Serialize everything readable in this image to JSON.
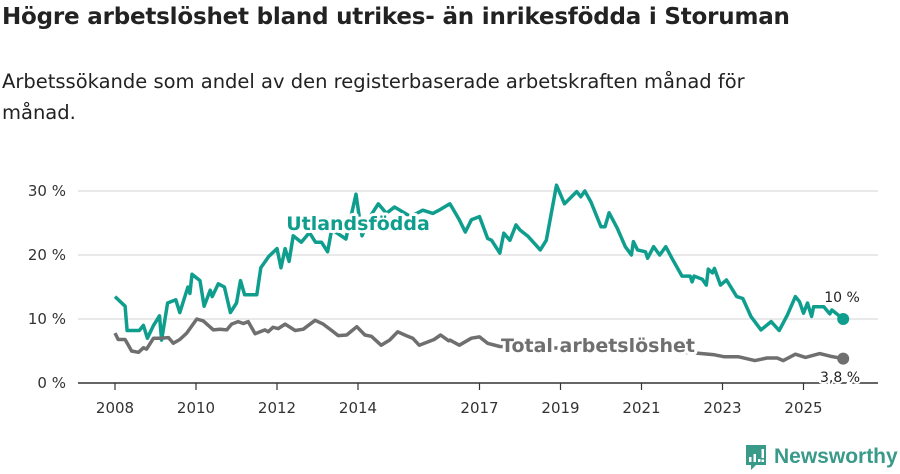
{
  "title": "Högre arbetslöshet bland utrikes- än inrikesfödda i Storuman",
  "subtitle": "Arbetssökande som andel av den registerbaserade arbetskraften månad för månad.",
  "brand": "Newsworthy",
  "colors": {
    "foreign": "#0f9e8e",
    "total": "#6f6f6f",
    "grid": "#e2e2e2",
    "brand": "#3a9a8a"
  },
  "chart_data": {
    "type": "line",
    "title": "Högre arbetslöshet bland utrikes- än inrikesfödda i Storuman",
    "xlabel": "",
    "ylabel": "",
    "ylim": [
      0,
      30
    ],
    "xlim": [
      2007.1,
      2026.8
    ],
    "yticks": [
      {
        "v": 0,
        "label": "0 %"
      },
      {
        "v": 10,
        "label": "10 %"
      },
      {
        "v": 20,
        "label": "20 %"
      },
      {
        "v": 30,
        "label": "30 %"
      }
    ],
    "xticks": [
      {
        "v": 2008,
        "label": "2008"
      },
      {
        "v": 2010,
        "label": "2010"
      },
      {
        "v": 2012,
        "label": "2012"
      },
      {
        "v": 2014,
        "label": "2014"
      },
      {
        "v": 2017,
        "label": "2017"
      },
      {
        "v": 2019,
        "label": "2019"
      },
      {
        "v": 2021,
        "label": "2021"
      },
      {
        "v": 2023,
        "label": "2023"
      },
      {
        "v": 2025,
        "label": "2025"
      }
    ],
    "grid": true,
    "series": [
      {
        "name": "Utlandsfödda",
        "end_label": "10 %",
        "x": [
          2008.0,
          2008.25,
          2008.3,
          2008.6,
          2008.7,
          2008.8,
          2008.95,
          2009.1,
          2009.15,
          2009.3,
          2009.5,
          2009.6,
          2009.8,
          2009.85,
          2009.9,
          2010.1,
          2010.2,
          2010.35,
          2010.4,
          2010.55,
          2010.7,
          2010.85,
          2011.0,
          2011.1,
          2011.2,
          2011.5,
          2011.6,
          2011.8,
          2012.0,
          2012.1,
          2012.2,
          2012.3,
          2012.4,
          2012.6,
          2012.8,
          2012.95,
          2013.1,
          2013.25,
          2013.35,
          2013.7,
          2013.95,
          2014.1,
          2014.3,
          2014.5,
          2014.7,
          2014.9,
          2015.3,
          2015.6,
          2015.85,
          2016.0,
          2016.27,
          2016.5,
          2016.65,
          2016.8,
          2017.0,
          2017.2,
          2017.3,
          2017.5,
          2017.6,
          2017.75,
          2017.9,
          2018.0,
          2018.2,
          2018.5,
          2018.65,
          2018.9,
          2019.1,
          2019.4,
          2019.5,
          2019.6,
          2019.75,
          2020.0,
          2020.1,
          2020.2,
          2020.4,
          2020.6,
          2020.75,
          2020.8,
          2020.9,
          2021.1,
          2021.15,
          2021.3,
          2021.45,
          2021.6,
          2021.75,
          2022.0,
          2022.2,
          2022.25,
          2022.3,
          2022.5,
          2022.6,
          2022.65,
          2022.75,
          2022.8,
          2022.95,
          2023.1,
          2023.35,
          2023.5,
          2023.7,
          2023.95,
          2024.2,
          2024.4,
          2024.6,
          2024.8,
          2024.9,
          2025.0,
          2025.1,
          2025.2,
          2025.25,
          2025.5,
          2025.65,
          2025.7,
          2025.98
        ],
        "y": [
          13.5,
          12,
          8.2,
          8.2,
          9,
          7,
          9,
          10.5,
          6.7,
          12.5,
          13,
          11,
          15,
          14,
          17,
          16,
          12,
          14.5,
          13.5,
          15.5,
          15,
          11,
          12.5,
          16,
          13.8,
          13.8,
          18,
          19.8,
          21,
          18,
          21,
          19,
          23,
          22,
          23.5,
          22,
          22,
          20.5,
          24,
          22.5,
          29.5,
          23,
          26,
          28,
          26.5,
          27.5,
          26,
          27,
          26.5,
          27,
          28,
          25.5,
          23.6,
          25.5,
          26,
          22.6,
          22.3,
          20.3,
          23.4,
          22.3,
          24.7,
          23.9,
          22.9,
          20.8,
          22.3,
          30.9,
          28,
          29.9,
          29.1,
          30,
          28.3,
          24.4,
          24.4,
          26.6,
          24.2,
          21.3,
          20,
          22.1,
          20.8,
          20.5,
          19.5,
          21.3,
          20,
          21.3,
          19.5,
          16.7,
          16.7,
          15.8,
          16.7,
          16.2,
          15.3,
          17.8,
          17.2,
          17.9,
          15.3,
          16.1,
          13.5,
          13.2,
          10.4,
          8.3,
          9.6,
          8.2,
          10.6,
          13.5,
          12.7,
          10.9,
          12.5,
          10.4,
          11.9,
          11.9,
          10.8,
          11.4,
          10
        ]
      },
      {
        "name": "Total arbetslöshet",
        "end_label": "3,8 %",
        "x": [
          2008.0,
          2008.08,
          2008.25,
          2008.41,
          2008.58,
          2008.7,
          2008.78,
          2008.95,
          2009.11,
          2009.32,
          2009.44,
          2009.6,
          2009.77,
          2010.02,
          2010.18,
          2010.43,
          2010.59,
          2010.76,
          2010.88,
          2011.04,
          2011.17,
          2011.29,
          2011.46,
          2011.7,
          2011.78,
          2011.9,
          2012.03,
          2012.2,
          2012.45,
          2012.65,
          2012.94,
          2013.14,
          2013.35,
          2013.51,
          2013.72,
          2013.97,
          2014.17,
          2014.33,
          2014.57,
          2014.78,
          2014.98,
          2015.19,
          2015.35,
          2015.51,
          2015.88,
          2016.04,
          2016.24,
          2016.27,
          2016.5,
          2016.8,
          2017.0,
          2017.2,
          2017.5,
          2018.5,
          2019.5,
          2020.5,
          2021.5,
          2022.3,
          2022.8,
          2023.05,
          2023.4,
          2023.8,
          2024.1,
          2024.35,
          2024.5,
          2024.8,
          2025.05,
          2025.4,
          2025.65,
          2025.98
        ],
        "y": [
          7.8,
          6.8,
          6.8,
          5,
          4.8,
          5.5,
          5.3,
          7,
          7,
          7.1,
          6.2,
          6.8,
          7.8,
          10,
          9.7,
          8.3,
          8.4,
          8.3,
          9.2,
          9.6,
          9.3,
          9.6,
          7.7,
          8.3,
          8,
          8.7,
          8.5,
          9.2,
          8.2,
          8.4,
          9.8,
          9.2,
          8.2,
          7.4,
          7.5,
          8.8,
          7.5,
          7.3,
          5.9,
          6.7,
          8,
          7.4,
          7,
          5.9,
          6.8,
          7.5,
          6.6,
          6.7,
          5.9,
          7,
          7.2,
          6.2,
          5.7,
          5.5,
          5.4,
          5.2,
          5,
          4.7,
          4.4,
          4.1,
          4.1,
          3.5,
          3.9,
          3.9,
          3.5,
          4.5,
          4,
          4.6,
          4.2,
          3.8
        ]
      }
    ]
  }
}
